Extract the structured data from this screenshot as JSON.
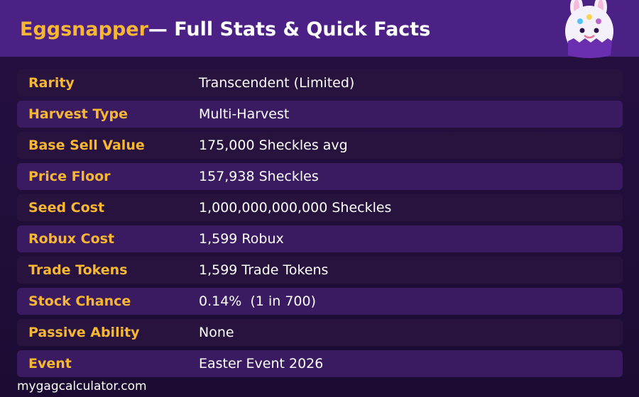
{
  "header": {
    "title_accent": "Eggsnapper",
    "title_rest": "— Full Stats & Quick Facts",
    "mascot_icon": "bunny-egg-mascot-icon"
  },
  "stats": [
    {
      "label": "Rarity",
      "value": "Transcendent (Limited)"
    },
    {
      "label": "Harvest Type",
      "value": "Multi-Harvest"
    },
    {
      "label": "Base Sell Value",
      "value": "175,000 Sheckles avg"
    },
    {
      "label": "Price Floor",
      "value": "157,938 Sheckles"
    },
    {
      "label": "Seed Cost",
      "value": "1,000,000,000,000 Sheckles"
    },
    {
      "label": "Robux Cost",
      "value": "1,599 Robux"
    },
    {
      "label": "Trade Tokens",
      "value": "1,599 Trade Tokens"
    },
    {
      "label": "Stock Chance",
      "value": "0.14%  (1 in 700)"
    },
    {
      "label": "Passive Ability",
      "value": "None"
    },
    {
      "label": "Event",
      "value": "Easter Event 2026"
    }
  ],
  "footer": {
    "site": "mygagcalculator.com"
  },
  "colors": {
    "header_bg": "#4b2186",
    "page_bg": "#1f0d36",
    "accent": "#f7b733",
    "row_dark": "#28133f",
    "row_light": "#3a1b62"
  }
}
